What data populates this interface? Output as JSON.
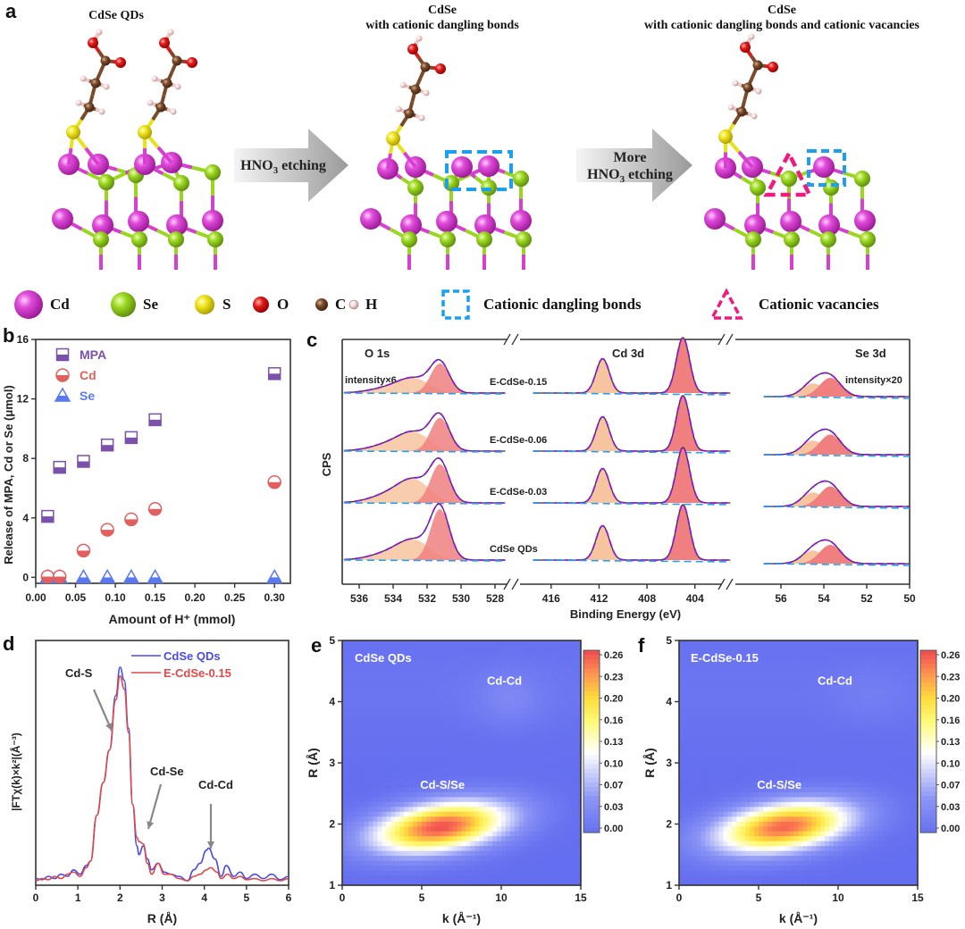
{
  "panel_a": {
    "letter": "a",
    "structures": [
      {
        "title_line1": "CdSe QDs",
        "title_line2": ""
      },
      {
        "title_line1": "CdSe",
        "title_line2": "with cationic dangling bonds"
      },
      {
        "title_line1": "CdSe",
        "title_line2": "with cationic dangling bonds and cationic vacancies"
      }
    ],
    "arrows": [
      {
        "line1": "",
        "line2_main": "HNO",
        "line2_sub": "3",
        "line2_rest": " etching"
      },
      {
        "line1": "More",
        "line2_main": "HNO",
        "line2_sub": "3",
        "line2_rest": " etching"
      }
    ],
    "legend": [
      {
        "label": "Cd",
        "icon": "cd-atom-icon",
        "color": "#d63fd0"
      },
      {
        "label": "Se",
        "icon": "se-atom-icon",
        "color": "#8fd11a"
      },
      {
        "label": "S",
        "icon": "s-atom-icon",
        "color": "#e8e21c"
      },
      {
        "label": "O",
        "icon": "o-atom-icon",
        "color": "#d91a1a"
      },
      {
        "label": "C",
        "icon": "c-atom-icon",
        "color": "#7a4a2a"
      },
      {
        "label": "H",
        "icon": "h-atom-icon",
        "color": "#f2d6d6"
      },
      {
        "label": "Cationic dangling bonds",
        "icon": "dashed-square-icon",
        "color": "#1aa0ee"
      },
      {
        "label": "Cationic vacancies",
        "icon": "dashed-triangle-icon",
        "color": "#ee1a80"
      }
    ]
  },
  "chart_data": [
    {
      "panel": "b",
      "type": "scatter",
      "title": "",
      "xlabel": "Amount of H⁺ (mmol)",
      "ylabel": "Release of MPA, Cd or Se (μmol)",
      "xlim": [
        0.0,
        0.32
      ],
      "ylim": [
        -0.4,
        16
      ],
      "xticks": [
        0.0,
        0.05,
        0.1,
        0.15,
        0.2,
        0.25,
        0.3
      ],
      "xtick_labels": [
        "0.00",
        "0.05",
        "0.10",
        "0.15",
        "0.20",
        "0.25",
        "0.30"
      ],
      "yticks": [
        0,
        4,
        8,
        12,
        16
      ],
      "ytick_labels": [
        "0",
        "4",
        "8",
        "12",
        "16"
      ],
      "legend_position": "top-left",
      "x": [
        0.015,
        0.03,
        0.06,
        0.09,
        0.12,
        0.15,
        0.3
      ],
      "series": [
        {
          "name": "MPA",
          "marker": "half-filled-square",
          "color": "#7b52ab",
          "values": [
            4.1,
            7.4,
            7.8,
            8.9,
            9.4,
            10.6,
            13.7
          ]
        },
        {
          "name": "Cd",
          "marker": "half-filled-circle",
          "color": "#e06060",
          "values": [
            0.05,
            0.05,
            1.8,
            3.2,
            3.9,
            4.6,
            6.4
          ]
        },
        {
          "name": "Se",
          "marker": "half-filled-triangle",
          "color": "#5a78f0",
          "values": [
            0.0,
            0.0,
            0.0,
            0.0,
            0.0,
            0.0,
            0.0
          ]
        }
      ]
    },
    {
      "panel": "c",
      "type": "line",
      "title": "",
      "xlabel": "Binding Energy (eV)",
      "ylabel": "CPS",
      "regions": [
        {
          "name": "O 1s",
          "xlim": [
            537,
            527
          ],
          "xticks": [
            536,
            534,
            532,
            530,
            528
          ],
          "annotation": "intensity×6",
          "peaks": [
            {
              "center": 531.3,
              "fill": "#f08080"
            },
            {
              "center": 532.6,
              "fill": "#f7c4a0"
            }
          ]
        },
        {
          "name": "Cd 3d",
          "xlim": [
            418,
            401
          ],
          "xticks": [
            416,
            412,
            408,
            404
          ],
          "annotation": "",
          "peaks": [
            {
              "center": 411.7,
              "fill": "#f7c4a0"
            },
            {
              "center": 405.0,
              "fill": "#f08080"
            }
          ]
        },
        {
          "name": "Se 3d",
          "xlim": [
            57,
            50
          ],
          "xticks": [
            56,
            54,
            52,
            50
          ],
          "annotation": "intensity×20",
          "peaks": [
            {
              "center": 54.5,
              "fill": "#f7c4a0"
            },
            {
              "center": 53.7,
              "fill": "#f08080"
            }
          ]
        }
      ],
      "samples": [
        "E-CdSe-0.15",
        "E-CdSe-0.06",
        "E-CdSe-0.03",
        "CdSe QDs"
      ],
      "o1s_peak_heights": [
        0.55,
        0.62,
        0.72,
        0.95
      ],
      "o1s_shoulder_heights": [
        0.22,
        0.28,
        0.35,
        0.3
      ],
      "cd_peak_heights": {
        "3d3/2": 0.62,
        "3d5/2": 1.0
      },
      "se_peak_heights": [
        0.42,
        0.45,
        0.45,
        0.42
      ],
      "line_colors": {
        "envelope": "#8a1ad6",
        "raw": "#333333",
        "background": "#2aa0e6"
      }
    },
    {
      "panel": "d",
      "type": "line",
      "title": "",
      "xlabel": "R (Å)",
      "ylabel": "|FTχ(k)×k²|(Å⁻³)",
      "xlim": [
        0,
        6
      ],
      "xticks": [
        0,
        1,
        2,
        3,
        4,
        5,
        6
      ],
      "legend_position": "top-right",
      "annotations": [
        {
          "text": "Cd-S",
          "x": 1.82
        },
        {
          "text": "Cd-Se",
          "x": 2.65
        },
        {
          "text": "Cd-Cd",
          "x": 4.12
        }
      ],
      "series": [
        {
          "name": "CdSe QDs",
          "color": "#4a4ae6",
          "x": [
            0,
            0.15,
            0.3,
            0.45,
            0.6,
            0.75,
            0.9,
            1.05,
            1.2,
            1.3,
            1.45,
            1.6,
            1.75,
            1.9,
            2.0,
            2.1,
            2.2,
            2.3,
            2.4,
            2.45,
            2.55,
            2.65,
            2.75,
            2.9,
            3.05,
            3.2,
            3.4,
            3.6,
            3.75,
            3.9,
            4.05,
            4.1,
            4.25,
            4.4,
            4.52,
            4.7,
            4.85,
            5.0,
            5.2,
            5.4,
            5.6,
            5.8,
            6.0
          ],
          "y": [
            0.01,
            0.005,
            0.02,
            0.01,
            0.03,
            0.02,
            0.05,
            0.03,
            0.07,
            0.09,
            0.3,
            0.45,
            0.6,
            0.85,
            0.98,
            0.92,
            0.7,
            0.35,
            0.16,
            0.12,
            0.16,
            0.1,
            0.05,
            0.08,
            0.04,
            0.03,
            0.02,
            0.0,
            0.05,
            0.08,
            0.14,
            0.15,
            0.1,
            0.02,
            0.07,
            0.02,
            0.04,
            0.01,
            0.03,
            0.01,
            0.03,
            0.005,
            0.02
          ]
        },
        {
          "name": "E-CdSe-0.15",
          "color": "#e04848",
          "x": [
            0,
            0.15,
            0.3,
            0.45,
            0.6,
            0.75,
            0.9,
            1.05,
            1.2,
            1.3,
            1.45,
            1.6,
            1.75,
            1.9,
            2.0,
            2.1,
            2.2,
            2.3,
            2.4,
            2.45,
            2.55,
            2.65,
            2.75,
            2.9,
            3.05,
            3.2,
            3.4,
            3.6,
            3.75,
            3.9,
            4.05,
            4.15,
            4.3,
            4.4,
            4.55,
            4.7,
            4.85,
            5.0,
            5.2,
            5.4,
            5.6,
            5.8,
            6.0
          ],
          "y": [
            0.0,
            0.01,
            0.005,
            0.02,
            0.01,
            0.03,
            0.04,
            0.02,
            0.06,
            0.09,
            0.3,
            0.45,
            0.6,
            0.83,
            0.94,
            0.88,
            0.68,
            0.35,
            0.2,
            0.18,
            0.17,
            0.08,
            0.03,
            0.08,
            0.03,
            0.03,
            0.01,
            0.0,
            0.02,
            0.03,
            0.05,
            0.06,
            0.04,
            0.01,
            0.03,
            0.01,
            0.02,
            0.005,
            0.01,
            0.0,
            0.01,
            0.0,
            0.01
          ]
        }
      ]
    },
    {
      "panel": "e",
      "type": "heatmap",
      "title": "",
      "label": "CdSe QDs",
      "xlabel": "k (Å⁻¹)",
      "ylabel": "R (Å)",
      "xlim": [
        0,
        15
      ],
      "ylim": [
        1,
        5
      ],
      "xticks": [
        0,
        5,
        10,
        15
      ],
      "yticks": [
        1,
        2,
        3,
        4,
        5
      ],
      "annotations": [
        {
          "text": "Cd-Cd",
          "k": 10.2,
          "R": 4.35
        },
        {
          "text": "Cd-S/Se",
          "k": 6.3,
          "R": 2.65
        }
      ],
      "colorbar_ticks": [
        "0.26",
        "0.23",
        "0.20",
        "0.16",
        "0.13",
        "0.10",
        "0.07",
        "0.03",
        "0.00"
      ],
      "colorbar_range": [
        0.0,
        0.27
      ],
      "peaks": [
        {
          "k": 6.2,
          "R": 1.95,
          "value": 0.27
        },
        {
          "k": 10.5,
          "R": 4.05,
          "value": 0.025
        }
      ]
    },
    {
      "panel": "f",
      "type": "heatmap",
      "title": "",
      "label": "E-CdSe-0.15",
      "xlabel": "k (Å⁻¹)",
      "ylabel": "R (Å)",
      "xlim": [
        0,
        15
      ],
      "ylim": [
        1,
        5
      ],
      "xticks": [
        0,
        5,
        10,
        15
      ],
      "yticks": [
        1,
        2,
        3,
        4,
        5
      ],
      "annotations": [
        {
          "text": "Cd-Cd",
          "k": 9.8,
          "R": 4.35
        },
        {
          "text": "Cd-S/Se",
          "k": 6.3,
          "R": 2.65
        }
      ],
      "colorbar_ticks": [
        "0.26",
        "0.23",
        "0.20",
        "0.16",
        "0.13",
        "0.10",
        "0.07",
        "0.03",
        "0.00"
      ],
      "colorbar_range": [
        0.0,
        0.27
      ],
      "peaks": [
        {
          "k": 6.6,
          "R": 1.95,
          "value": 0.26
        },
        {
          "k": 12.0,
          "R": 4.1,
          "value": 0.012
        }
      ]
    }
  ],
  "labels": {
    "b": "b",
    "c": "c",
    "d": "d",
    "e": "e",
    "f": "f"
  }
}
